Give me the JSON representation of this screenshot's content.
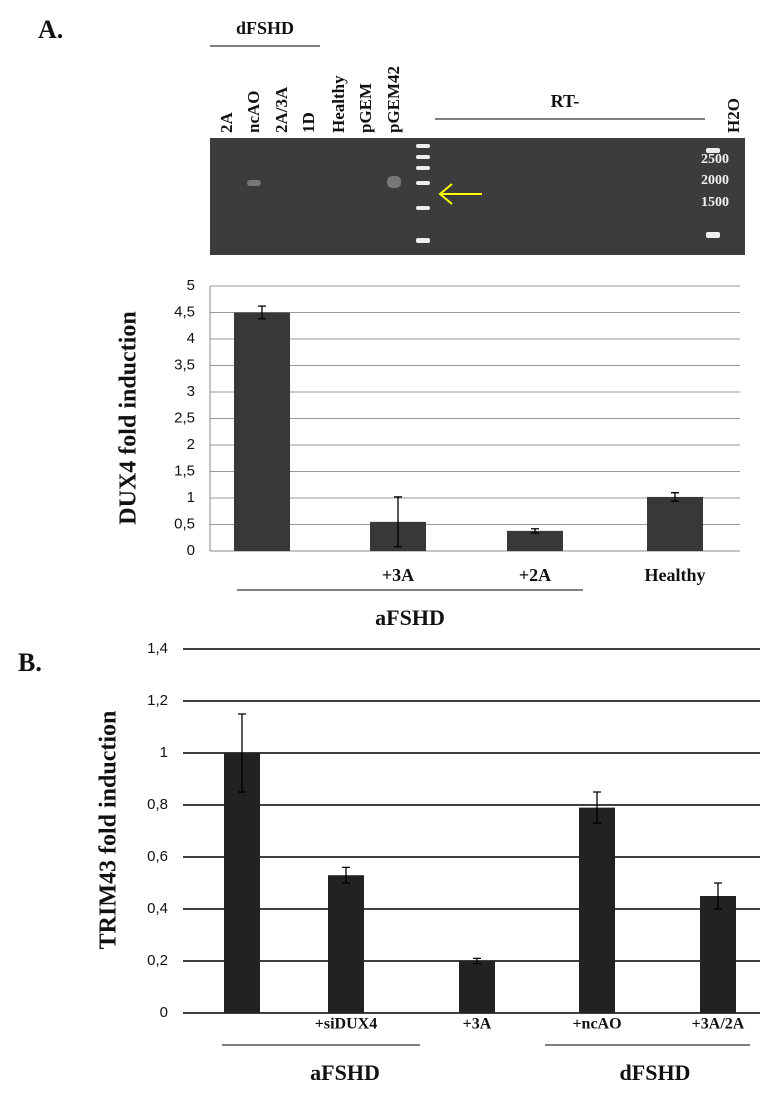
{
  "panels": [
    "A.",
    "B."
  ],
  "gel": {
    "group_label": "dFSHD",
    "lanes": [
      "2A",
      "ncAO",
      "2A/3A",
      "1D",
      "Healthy",
      "pGEM",
      "pGEM42"
    ],
    "rt_label": "RT-",
    "water_label": "H2O",
    "markers": [
      2500,
      2000,
      1500
    ]
  },
  "chart_data": [
    {
      "type": "bar",
      "y_label": "DUX4 fold induction",
      "categories": [
        null,
        "+3A",
        "+2A",
        "Healthy"
      ],
      "group_labels": [
        "aFSHD"
      ],
      "values": [
        4.5,
        0.55,
        0.38,
        1.02
      ],
      "errors": [
        0.12,
        0.47,
        0.04,
        0.08
      ],
      "color": "#383838",
      "ylim": [
        0,
        5
      ],
      "yticks": [
        0,
        {
          "value": 0.5,
          "label": "0,5"
        },
        1,
        {
          "value": 1.5,
          "label": "1,5"
        },
        2,
        {
          "value": 2.5,
          "label": "2,5"
        },
        3,
        {
          "value": 3.5,
          "label": "3,5"
        },
        4,
        {
          "value": 4.5,
          "label": "4,5"
        },
        5
      ],
      "grid": true,
      "grid_color": "#999999"
    },
    {
      "type": "bar",
      "y_label": "TRIM43 fold induction",
      "categories": [
        null,
        "+siDUX4",
        "+3A",
        "+ncAO",
        "+3A/2A"
      ],
      "group_labels": [
        "aFSHD",
        "dFSHD"
      ],
      "values": [
        1.0,
        0.53,
        0.2,
        0.79,
        0.45
      ],
      "errors": [
        0.15,
        0.03,
        0.01,
        0.06,
        0.05
      ],
      "color": "#222222",
      "ylim": [
        0,
        1.4
      ],
      "yticks": [
        0,
        {
          "value": 0.2,
          "label": "0,2"
        },
        {
          "value": 0.4,
          "label": "0,4"
        },
        {
          "value": 0.6,
          "label": "0,6"
        },
        {
          "value": 0.8,
          "label": "0,8"
        },
        1,
        {
          "value": 1.2,
          "label": "1,2"
        },
        {
          "value": 1.4,
          "label": "1,4"
        }
      ],
      "grid": true,
      "grid_color": "#000000"
    }
  ]
}
